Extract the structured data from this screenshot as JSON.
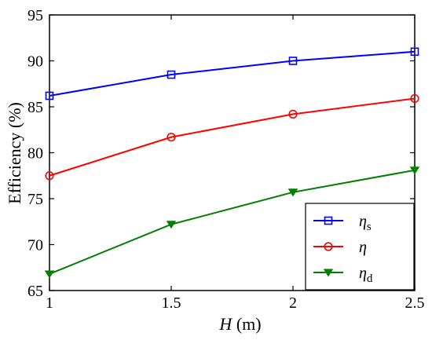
{
  "chart_data": {
    "type": "line",
    "title": "",
    "xlabel_symbol": "H",
    "xlabel_unit": " (m)",
    "ylabel": "Efficiency (%)",
    "x": [
      1,
      1.5,
      2,
      2.5
    ],
    "xlim": [
      1,
      2.5
    ],
    "ylim": [
      65,
      95
    ],
    "xticks": [
      "1",
      "1.5",
      "2",
      "2.5"
    ],
    "yticks": [
      "65",
      "70",
      "75",
      "80",
      "85",
      "90",
      "95"
    ],
    "grid": false,
    "legend_position": "bottom-right",
    "series": [
      {
        "name": "ηs",
        "symbol": "η",
        "subscript": "s",
        "color": "#0000ff",
        "marker": "square",
        "values": [
          86.2,
          88.5,
          90.0,
          91.0
        ]
      },
      {
        "name": "η",
        "symbol": "η",
        "subscript": "",
        "color": "#ff0000",
        "marker": "circle",
        "values": [
          77.5,
          81.7,
          84.2,
          85.9
        ]
      },
      {
        "name": "ηd",
        "symbol": "η",
        "subscript": "d",
        "color": "#008000",
        "marker": "triangle-down",
        "values": [
          66.8,
          72.2,
          75.7,
          78.1
        ]
      }
    ]
  }
}
